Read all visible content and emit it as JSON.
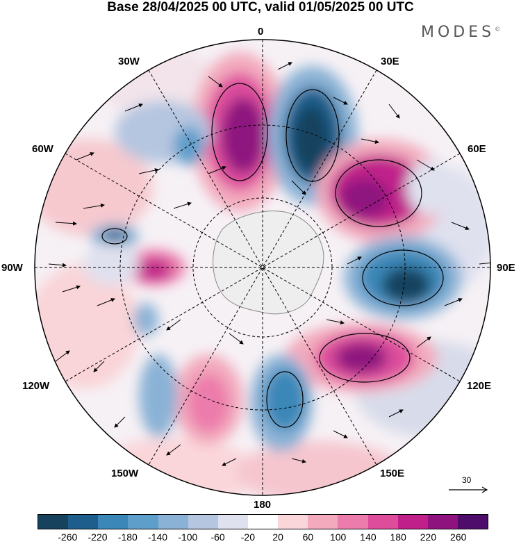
{
  "title": "Base 28/04/2025 00 UTC, valid 01/05/2025 00 UTC",
  "logo": "MODES",
  "logo_mark": "©",
  "longitude_labels": {
    "lon_0": "0",
    "lon_30e": "30E",
    "lon_60e": "60E",
    "lon_90e": "90E",
    "lon_120e": "120E",
    "lon_150e": "150E",
    "lon_180": "180",
    "lon_150w": "150W",
    "lon_120w": "120W",
    "lon_90w": "90W",
    "lon_60w": "60W",
    "lon_30w": "30W"
  },
  "reference_vector": "30",
  "colorbar": {
    "colors": [
      "#16425e",
      "#1d5e8c",
      "#3a87b8",
      "#5e9ecb",
      "#8ab2d6",
      "#b5c6e0",
      "#dfe1ef",
      "#ffffff",
      "#fad6da",
      "#f3aabd",
      "#ec7cab",
      "#dd4d9c",
      "#c0208a",
      "#8e137f",
      "#4f0d6b"
    ],
    "ticks": [
      "-260",
      "-220",
      "-180",
      "-140",
      "-100",
      "-60",
      "-20",
      "20",
      "60",
      "100",
      "140",
      "180",
      "220",
      "260"
    ]
  }
}
